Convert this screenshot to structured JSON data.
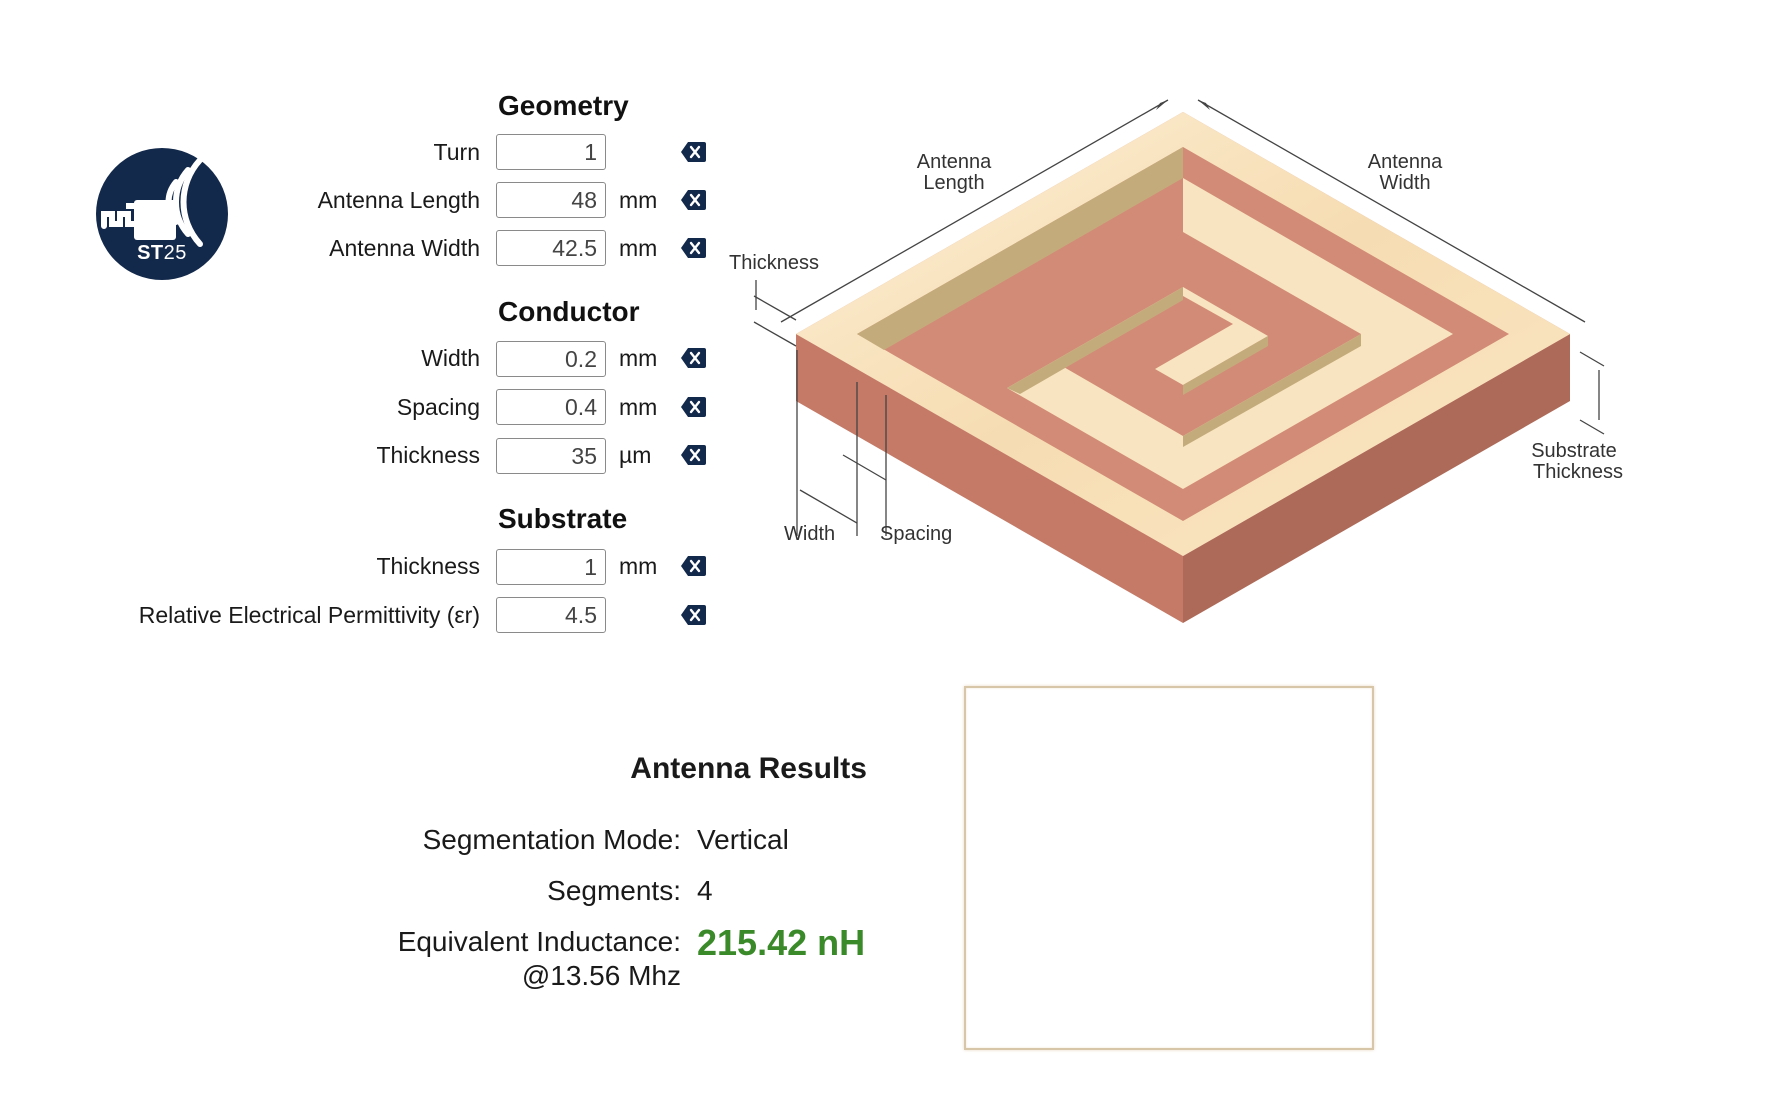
{
  "logo": {
    "brand": "ST",
    "number": "25",
    "icon": "nfc-antenna-icon",
    "color": "#13294b"
  },
  "geometry": {
    "title": "Geometry",
    "turn": {
      "label": "Turn",
      "value": "1",
      "unit": ""
    },
    "length": {
      "label": "Antenna Length",
      "value": "48",
      "unit": "mm"
    },
    "width": {
      "label": "Antenna Width",
      "value": "42.5",
      "unit": "mm"
    }
  },
  "conductor": {
    "title": "Conductor",
    "width": {
      "label": "Width",
      "value": "0.2",
      "unit": "mm"
    },
    "spacing": {
      "label": "Spacing",
      "value": "0.4",
      "unit": "mm"
    },
    "thickness": {
      "label": "Thickness",
      "value": "35",
      "unit": "µm"
    }
  },
  "substrate": {
    "title": "Substrate",
    "thickness": {
      "label": "Thickness",
      "value": "1",
      "unit": "mm"
    },
    "permittivity": {
      "label": "Relative Electrical Permittivity (εr)",
      "value": "4.5",
      "unit": ""
    }
  },
  "diagram": {
    "antenna_length": [
      "Antenna",
      "Length"
    ],
    "antenna_width": [
      "Antenna",
      "Width"
    ],
    "thickness": "Thickness",
    "width": "Width",
    "spacing": "Spacing",
    "substrate_thickness": [
      "Substrate",
      "Thickness"
    ]
  },
  "results": {
    "title": "Antenna Results",
    "mode_label": "Segmentation Mode:",
    "mode_value": "Vertical",
    "segments_label": "Segments:",
    "segments_value": "4",
    "inductance_label": "Equivalent Inductance:",
    "inductance_freq": "@13.56 Mhz",
    "inductance_value": "215.42 nH"
  },
  "colors": {
    "accent_green": "#3a8a2a",
    "clear_button": "#13294b",
    "copper": "#c98068",
    "coil": "#f8e2bd"
  }
}
